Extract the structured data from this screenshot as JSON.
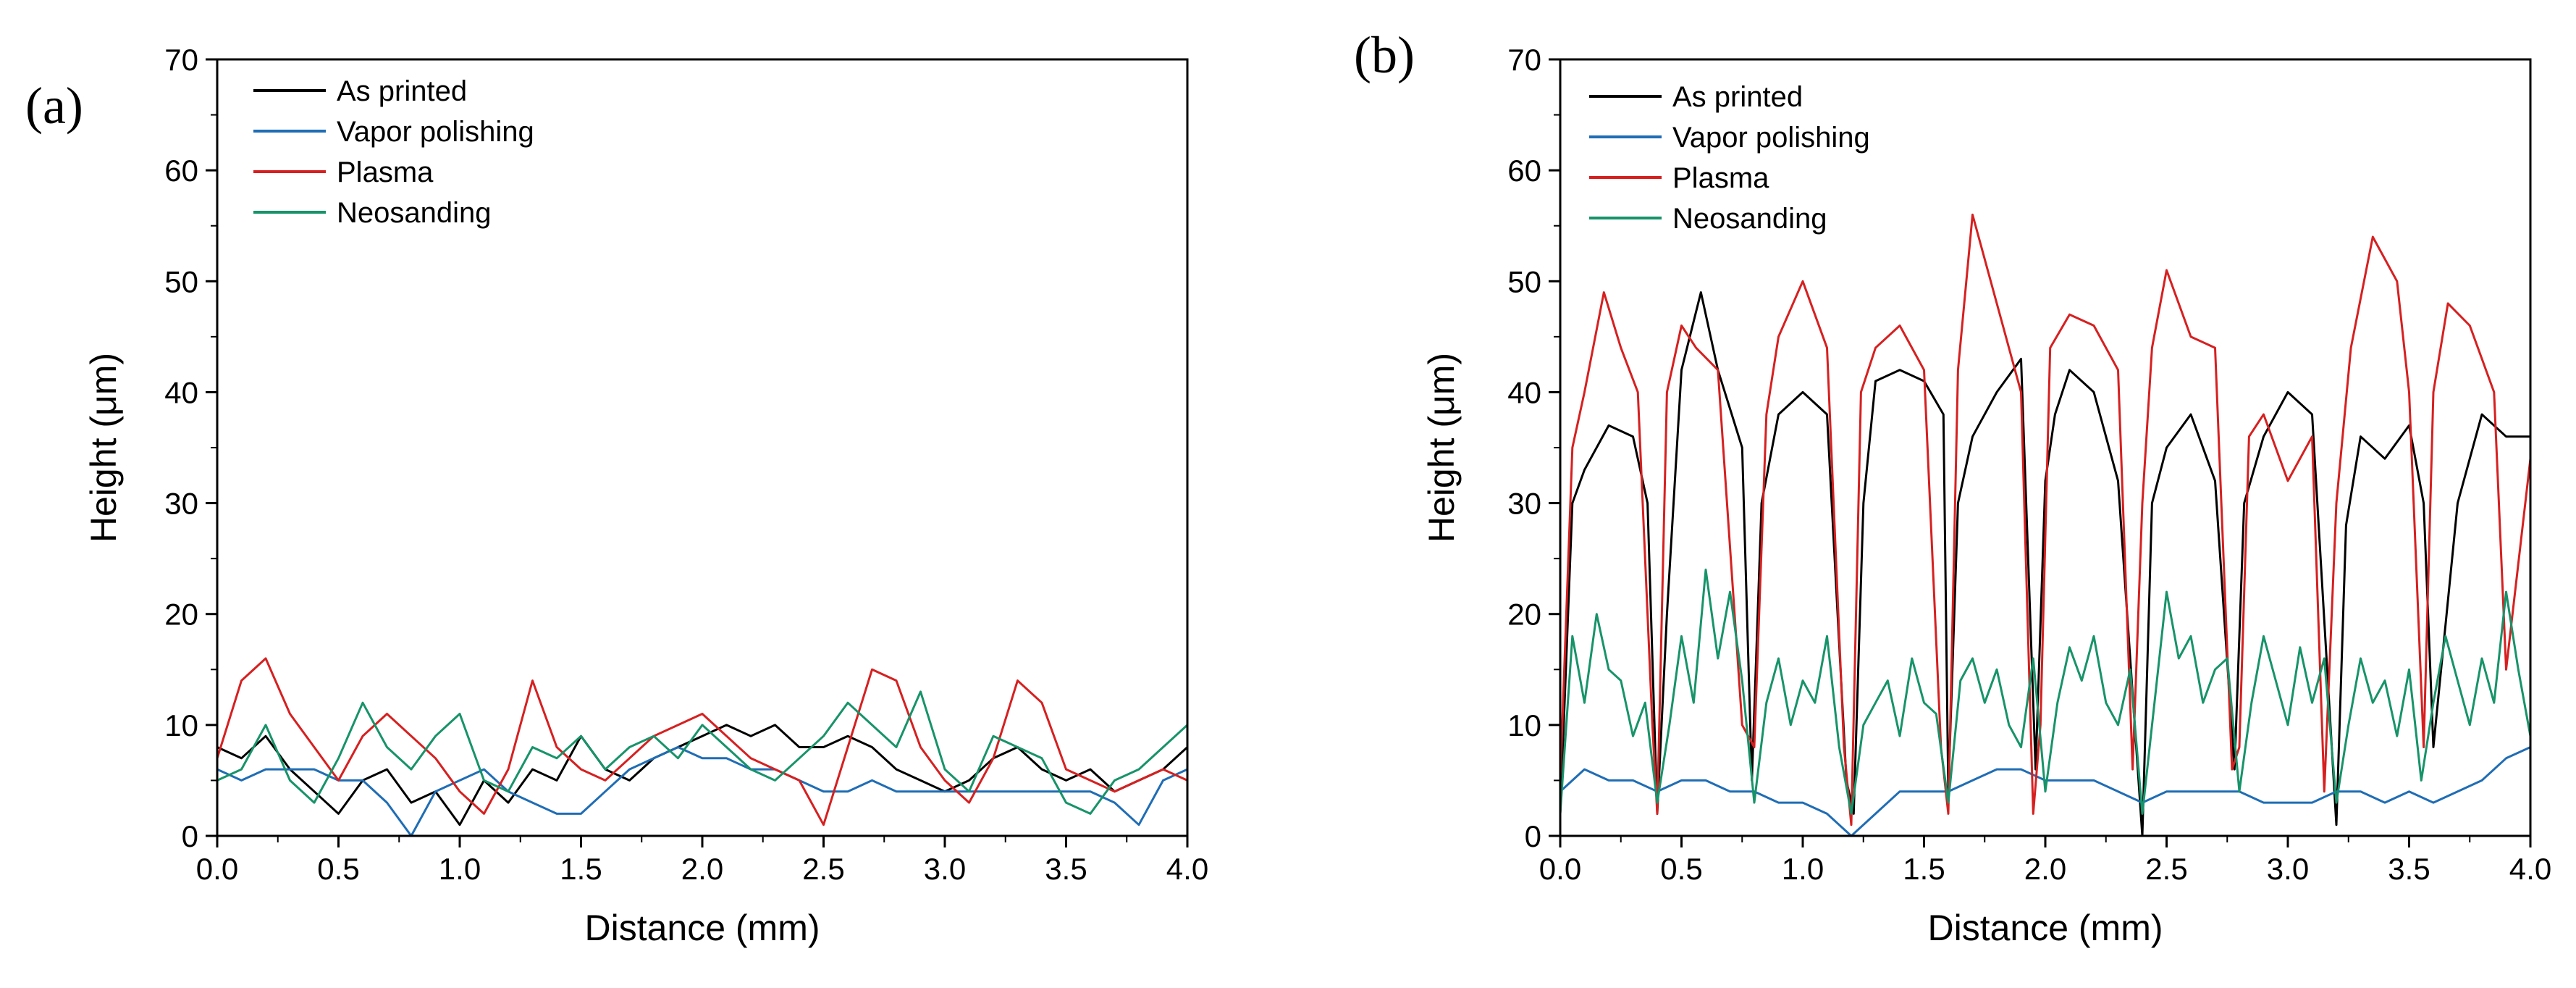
{
  "chart_data": [
    {
      "type": "line",
      "panel_label": "(a)",
      "xlabel": "Distance (mm)",
      "ylabel": "Height (μm)",
      "xlim": [
        0.0,
        4.0
      ],
      "ylim": [
        0,
        70
      ],
      "xticks": [
        "0.0",
        "0.5",
        "1.0",
        "1.5",
        "2.0",
        "2.5",
        "3.0",
        "3.5",
        "4.0"
      ],
      "yticks": [
        "0",
        "10",
        "20",
        "30",
        "40",
        "50",
        "60",
        "70"
      ],
      "grid": false,
      "legend_position": "top-left",
      "series": [
        {
          "name": "As printed",
          "color": "#000000",
          "x": [
            0.0,
            0.1,
            0.2,
            0.3,
            0.4,
            0.5,
            0.6,
            0.7,
            0.8,
            0.9,
            1.0,
            1.1,
            1.2,
            1.3,
            1.4,
            1.5,
            1.6,
            1.7,
            1.8,
            1.9,
            2.0,
            2.1,
            2.2,
            2.3,
            2.4,
            2.5,
            2.6,
            2.7,
            2.8,
            2.9,
            3.0,
            3.1,
            3.2,
            3.3,
            3.4,
            3.5,
            3.6,
            3.7,
            3.8,
            3.9,
            4.0
          ],
          "y": [
            8,
            7,
            9,
            6,
            4,
            2,
            5,
            6,
            3,
            4,
            1,
            5,
            3,
            6,
            5,
            9,
            6,
            5,
            7,
            8,
            9,
            10,
            9,
            10,
            8,
            8,
            9,
            8,
            6,
            5,
            4,
            5,
            7,
            8,
            6,
            5,
            6,
            4,
            5,
            6,
            8
          ]
        },
        {
          "name": "Vapor polishing",
          "color": "#1f6db5",
          "x": [
            0.0,
            0.1,
            0.2,
            0.3,
            0.4,
            0.5,
            0.6,
            0.7,
            0.8,
            0.9,
            1.0,
            1.1,
            1.2,
            1.3,
            1.4,
            1.5,
            1.6,
            1.7,
            1.8,
            1.9,
            2.0,
            2.1,
            2.2,
            2.3,
            2.4,
            2.5,
            2.6,
            2.7,
            2.8,
            2.9,
            3.0,
            3.1,
            3.2,
            3.3,
            3.4,
            3.5,
            3.6,
            3.7,
            3.8,
            3.9,
            4.0
          ],
          "y": [
            6,
            5,
            6,
            6,
            6,
            5,
            5,
            3,
            0,
            4,
            5,
            6,
            4,
            3,
            2,
            2,
            4,
            6,
            7,
            8,
            7,
            7,
            6,
            6,
            5,
            4,
            4,
            5,
            4,
            4,
            4,
            4,
            4,
            4,
            4,
            4,
            4,
            3,
            1,
            5,
            6
          ]
        },
        {
          "name": "Plasma",
          "color": "#d62020",
          "x": [
            0.0,
            0.1,
            0.2,
            0.3,
            0.4,
            0.5,
            0.6,
            0.7,
            0.8,
            0.9,
            1.0,
            1.1,
            1.2,
            1.3,
            1.4,
            1.5,
            1.6,
            1.7,
            1.8,
            1.9,
            2.0,
            2.1,
            2.2,
            2.3,
            2.4,
            2.5,
            2.6,
            2.7,
            2.8,
            2.9,
            3.0,
            3.1,
            3.2,
            3.3,
            3.4,
            3.5,
            3.6,
            3.7,
            3.8,
            3.9,
            4.0
          ],
          "y": [
            7,
            14,
            16,
            11,
            8,
            5,
            9,
            11,
            9,
            7,
            4,
            2,
            6,
            14,
            8,
            6,
            5,
            7,
            9,
            10,
            11,
            9,
            7,
            6,
            5,
            1,
            8,
            15,
            14,
            8,
            5,
            3,
            7,
            14,
            12,
            6,
            5,
            4,
            5,
            6,
            5
          ]
        },
        {
          "name": "Neosanding",
          "color": "#17936a",
          "x": [
            0.0,
            0.1,
            0.2,
            0.3,
            0.4,
            0.5,
            0.6,
            0.7,
            0.8,
            0.9,
            1.0,
            1.1,
            1.2,
            1.3,
            1.4,
            1.5,
            1.6,
            1.7,
            1.8,
            1.9,
            2.0,
            2.1,
            2.2,
            2.3,
            2.4,
            2.5,
            2.6,
            2.7,
            2.8,
            2.9,
            3.0,
            3.1,
            3.2,
            3.3,
            3.4,
            3.5,
            3.6,
            3.7,
            3.8,
            3.9,
            4.0
          ],
          "y": [
            5,
            6,
            10,
            5,
            3,
            7,
            12,
            8,
            6,
            9,
            11,
            5,
            4,
            8,
            7,
            9,
            6,
            8,
            9,
            7,
            10,
            8,
            6,
            5,
            7,
            9,
            12,
            10,
            8,
            13,
            6,
            4,
            9,
            8,
            7,
            3,
            2,
            5,
            6,
            8,
            10
          ]
        }
      ]
    },
    {
      "type": "line",
      "panel_label": "(b)",
      "xlabel": "Distance (mm)",
      "ylabel": "Height (μm)",
      "xlim": [
        0.0,
        4.0
      ],
      "ylim": [
        0,
        70
      ],
      "xticks": [
        "0.0",
        "0.5",
        "1.0",
        "1.5",
        "2.0",
        "2.5",
        "3.0",
        "3.5",
        "4.0"
      ],
      "yticks": [
        "0",
        "10",
        "20",
        "30",
        "40",
        "50",
        "60",
        "70"
      ],
      "grid": false,
      "legend_position": "top-left",
      "series": [
        {
          "name": "As printed",
          "color": "#000000",
          "x": [
            0.0,
            0.05,
            0.1,
            0.2,
            0.3,
            0.36,
            0.4,
            0.44,
            0.5,
            0.58,
            0.65,
            0.75,
            0.79,
            0.83,
            0.9,
            1.0,
            1.1,
            1.18,
            1.21,
            1.25,
            1.3,
            1.4,
            1.5,
            1.58,
            1.6,
            1.64,
            1.7,
            1.8,
            1.9,
            1.96,
            2.0,
            2.04,
            2.1,
            2.2,
            2.3,
            2.4,
            2.44,
            2.5,
            2.6,
            2.7,
            2.78,
            2.82,
            2.9,
            3.0,
            3.1,
            3.2,
            3.24,
            3.3,
            3.4,
            3.5,
            3.56,
            3.6,
            3.7,
            3.8,
            3.9,
            4.0
          ],
          "y": [
            2,
            30,
            33,
            37,
            36,
            30,
            2,
            20,
            42,
            49,
            42,
            35,
            5,
            30,
            38,
            40,
            38,
            5,
            2,
            30,
            41,
            42,
            41,
            38,
            4,
            30,
            36,
            40,
            43,
            6,
            32,
            38,
            42,
            40,
            32,
            0,
            30,
            35,
            38,
            32,
            6,
            30,
            36,
            40,
            38,
            1,
            28,
            36,
            34,
            37,
            30,
            8,
            30,
            38,
            36,
            36
          ]
        },
        {
          "name": "Vapor polishing",
          "color": "#1f6db5",
          "x": [
            0.0,
            0.1,
            0.2,
            0.3,
            0.4,
            0.5,
            0.6,
            0.7,
            0.8,
            0.9,
            1.0,
            1.1,
            1.2,
            1.3,
            1.4,
            1.5,
            1.6,
            1.7,
            1.8,
            1.9,
            2.0,
            2.1,
            2.2,
            2.3,
            2.4,
            2.5,
            2.6,
            2.7,
            2.8,
            2.9,
            3.0,
            3.1,
            3.2,
            3.3,
            3.4,
            3.5,
            3.6,
            3.7,
            3.8,
            3.9,
            4.0
          ],
          "y": [
            4,
            6,
            5,
            5,
            4,
            5,
            5,
            4,
            4,
            3,
            3,
            2,
            0,
            2,
            4,
            4,
            4,
            5,
            6,
            6,
            5,
            5,
            5,
            4,
            3,
            4,
            4,
            4,
            4,
            3,
            3,
            3,
            4,
            4,
            3,
            4,
            3,
            4,
            5,
            7,
            8
          ]
        },
        {
          "name": "Plasma",
          "color": "#d62020",
          "x": [
            0.0,
            0.05,
            0.1,
            0.18,
            0.25,
            0.32,
            0.38,
            0.4,
            0.44,
            0.5,
            0.56,
            0.65,
            0.75,
            0.8,
            0.85,
            0.9,
            1.0,
            1.1,
            1.17,
            1.2,
            1.24,
            1.3,
            1.4,
            1.5,
            1.57,
            1.6,
            1.64,
            1.7,
            1.8,
            1.9,
            1.95,
            1.98,
            2.02,
            2.1,
            2.2,
            2.3,
            2.36,
            2.4,
            2.44,
            2.5,
            2.6,
            2.7,
            2.77,
            2.8,
            2.84,
            2.9,
            3.0,
            3.1,
            3.15,
            3.2,
            3.26,
            3.35,
            3.45,
            3.5,
            3.56,
            3.6,
            3.66,
            3.75,
            3.85,
            3.9,
            4.0
          ],
          "y": [
            5,
            35,
            40,
            49,
            44,
            40,
            10,
            2,
            40,
            46,
            44,
            42,
            10,
            8,
            38,
            45,
            50,
            44,
            8,
            1,
            40,
            44,
            46,
            42,
            8,
            2,
            42,
            56,
            48,
            40,
            2,
            10,
            44,
            47,
            46,
            42,
            6,
            30,
            44,
            51,
            45,
            44,
            6,
            8,
            36,
            38,
            32,
            36,
            4,
            30,
            44,
            54,
            50,
            40,
            8,
            40,
            48,
            46,
            40,
            15,
            34
          ]
        },
        {
          "name": "Neosanding",
          "color": "#17936a",
          "x": [
            0.0,
            0.05,
            0.1,
            0.15,
            0.2,
            0.25,
            0.3,
            0.35,
            0.4,
            0.45,
            0.5,
            0.55,
            0.6,
            0.65,
            0.7,
            0.75,
            0.8,
            0.85,
            0.9,
            0.95,
            1.0,
            1.05,
            1.1,
            1.15,
            1.2,
            1.25,
            1.3,
            1.35,
            1.4,
            1.45,
            1.5,
            1.55,
            1.6,
            1.65,
            1.7,
            1.75,
            1.8,
            1.85,
            1.9,
            1.95,
            2.0,
            2.05,
            2.1,
            2.15,
            2.2,
            2.25,
            2.3,
            2.35,
            2.4,
            2.45,
            2.5,
            2.55,
            2.6,
            2.65,
            2.7,
            2.75,
            2.8,
            2.85,
            2.9,
            2.95,
            3.0,
            3.05,
            3.1,
            3.15,
            3.2,
            3.25,
            3.3,
            3.35,
            3.4,
            3.45,
            3.5,
            3.55,
            3.6,
            3.65,
            3.7,
            3.75,
            3.8,
            3.85,
            3.9,
            3.95,
            4.0
          ],
          "y": [
            2,
            18,
            12,
            20,
            15,
            14,
            9,
            12,
            3,
            10,
            18,
            12,
            24,
            16,
            22,
            14,
            3,
            12,
            16,
            10,
            14,
            12,
            18,
            8,
            2,
            10,
            12,
            14,
            9,
            16,
            12,
            11,
            3,
            14,
            16,
            12,
            15,
            10,
            8,
            16,
            4,
            12,
            17,
            14,
            18,
            12,
            10,
            15,
            2,
            12,
            22,
            16,
            18,
            12,
            15,
            16,
            4,
            12,
            18,
            14,
            10,
            17,
            12,
            16,
            3,
            10,
            16,
            12,
            14,
            9,
            15,
            5,
            12,
            18,
            14,
            10,
            16,
            12,
            22,
            15,
            9
          ]
        }
      ]
    }
  ]
}
